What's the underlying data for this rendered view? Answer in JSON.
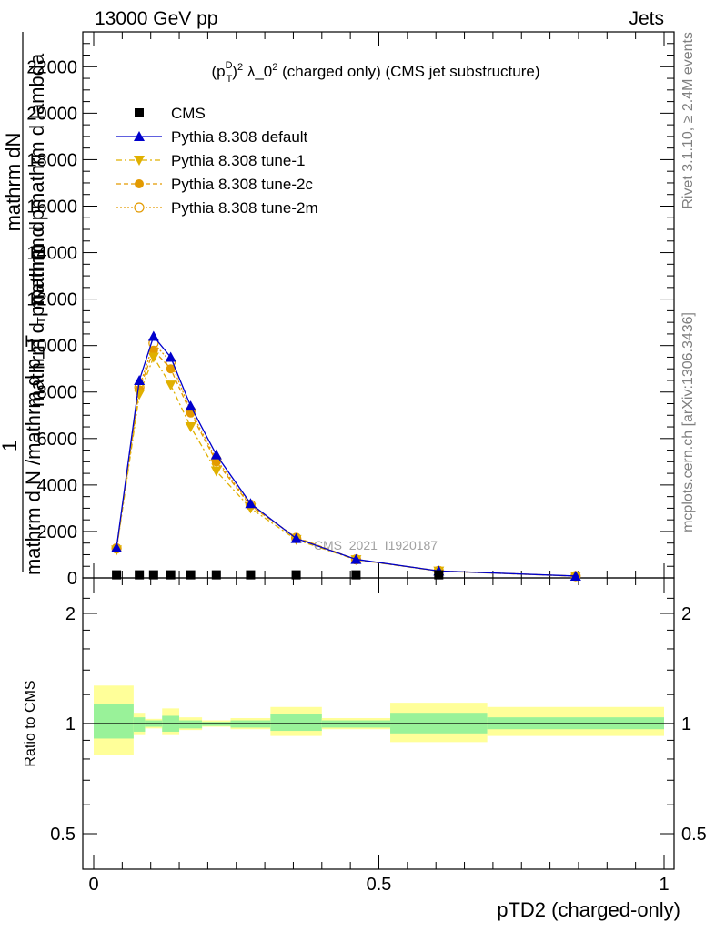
{
  "header": {
    "left": "13000 GeV pp",
    "right": "Jets"
  },
  "side_labels": {
    "rivet": "Rivet 3.1.10, ≥ 2.4M events",
    "mcplots": "mcplots.cern.ch [arXiv:1306.3436]"
  },
  "chart_data": [
    {
      "type": "line",
      "title": "(p_T^D)^2 λ_0^2 (charged only) (CMS jet substructure)",
      "ylabel": "mathrm d^2N / mathrm d p_T mathrm d lambda",
      "ylabel_parts": [
        "mathrm dN",
        "mathrm d pmathrm d lambda",
        "mathrm d pmathrm d",
        "1",
        "mathrm d N /mathrm d p_T"
      ],
      "ylabel_sub": "T",
      "watermark": "CMS_2021_I1920187",
      "ylim": [
        0,
        23500
      ],
      "xlim": [
        0,
        1
      ],
      "yticks": [
        0,
        2000,
        4000,
        6000,
        8000,
        10000,
        12000,
        14000,
        16000,
        18000,
        20000,
        22000
      ],
      "ytick_labels": [
        "0",
        "2000",
        "4000",
        "6000",
        "8000",
        "10000",
        "12000",
        "14000",
        "16000",
        "18000",
        "20000",
        "22000"
      ],
      "legend_position": "top-left",
      "series": [
        {
          "name": "CMS",
          "color": "#000000",
          "marker": "square",
          "x": [
            0.04,
            0.08,
            0.105,
            0.135,
            0.17,
            0.215,
            0.275,
            0.355,
            0.46,
            0.605
          ],
          "values": [
            55,
            55,
            55,
            55,
            55,
            55,
            55,
            55,
            55,
            55
          ]
        },
        {
          "name": "Pythia 8.308 default",
          "color": "#0000cc",
          "marker": "triangle-up",
          "dash": "",
          "x": [
            0.04,
            0.08,
            0.105,
            0.135,
            0.17,
            0.215,
            0.275,
            0.355,
            0.46,
            0.605,
            0.845
          ],
          "values": [
            1300,
            8500,
            10400,
            9500,
            7400,
            5300,
            3200,
            1700,
            800,
            300,
            80
          ]
        },
        {
          "name": "Pythia 8.308 tune-1",
          "color": "#e0b000",
          "marker": "triangle-down",
          "dash": "6,3,2,3",
          "x": [
            0.04,
            0.08,
            0.105,
            0.135,
            0.17,
            0.215,
            0.275,
            0.355,
            0.46,
            0.605,
            0.845
          ],
          "values": [
            1200,
            7900,
            9500,
            8300,
            6500,
            4600,
            3000,
            1650,
            780,
            290,
            75
          ]
        },
        {
          "name": "Pythia 8.308 tune-2c",
          "color": "#e39a00",
          "marker": "circle-filled",
          "dash": "5,3",
          "x": [
            0.04,
            0.08,
            0.105,
            0.135,
            0.17,
            0.215,
            0.275,
            0.355,
            0.46,
            0.605,
            0.845
          ],
          "values": [
            1250,
            8100,
            9800,
            9000,
            7100,
            5000,
            3100,
            1750,
            790,
            300,
            78
          ]
        },
        {
          "name": "Pythia 8.308 tune-2m",
          "color": "#e39a00",
          "marker": "circle-open",
          "dash": "2,2",
          "x": [
            0.04,
            0.08,
            0.105,
            0.135,
            0.17,
            0.215,
            0.275,
            0.355,
            0.46,
            0.605,
            0.845
          ],
          "values": [
            1270,
            8200,
            10100,
            9300,
            7200,
            5100,
            3150,
            1720,
            795,
            300,
            79
          ]
        }
      ]
    },
    {
      "type": "area",
      "ylabel": "Ratio to CMS",
      "xlabel": "pTD2 (charged-only)",
      "xlim": [
        0,
        1
      ],
      "ylim": [
        0.4,
        2.3
      ],
      "log_y": true,
      "xticks": [
        0,
        0.5,
        1
      ],
      "xtick_labels": [
        "0",
        "0.5",
        "1"
      ],
      "yticks": [
        0.5,
        1,
        2
      ],
      "ytick_labels": [
        "0.5",
        "1",
        "2"
      ],
      "bins": [
        {
          "lo": 0.0,
          "hi": 0.07,
          "inner": [
            0.91,
            1.13
          ],
          "outer": [
            0.82,
            1.27
          ]
        },
        {
          "lo": 0.07,
          "hi": 0.09,
          "inner": [
            0.95,
            1.04
          ],
          "outer": [
            0.93,
            1.07
          ]
        },
        {
          "lo": 0.09,
          "hi": 0.12,
          "inner": [
            0.98,
            1.02
          ],
          "outer": [
            0.97,
            1.03
          ]
        },
        {
          "lo": 0.12,
          "hi": 0.15,
          "inner": [
            0.95,
            1.05
          ],
          "outer": [
            0.93,
            1.1
          ]
        },
        {
          "lo": 0.15,
          "hi": 0.19,
          "inner": [
            0.97,
            1.02
          ],
          "outer": [
            0.96,
            1.04
          ]
        },
        {
          "lo": 0.19,
          "hi": 0.24,
          "inner": [
            0.985,
            1.01
          ],
          "outer": [
            0.98,
            1.02
          ]
        },
        {
          "lo": 0.24,
          "hi": 0.31,
          "inner": [
            0.975,
            1.02
          ],
          "outer": [
            0.965,
            1.035
          ]
        },
        {
          "lo": 0.31,
          "hi": 0.4,
          "inner": [
            0.955,
            1.06
          ],
          "outer": [
            0.925,
            1.11
          ]
        },
        {
          "lo": 0.4,
          "hi": 0.52,
          "inner": [
            0.975,
            1.02
          ],
          "outer": [
            0.965,
            1.035
          ]
        },
        {
          "lo": 0.52,
          "hi": 0.69,
          "inner": [
            0.94,
            1.07
          ],
          "outer": [
            0.89,
            1.14
          ]
        },
        {
          "lo": 0.69,
          "hi": 1.0,
          "inner": [
            0.965,
            1.04
          ],
          "outer": [
            0.925,
            1.11
          ]
        }
      ],
      "colors": {
        "inner": "#99f299",
        "outer": "#ffff99"
      }
    }
  ]
}
